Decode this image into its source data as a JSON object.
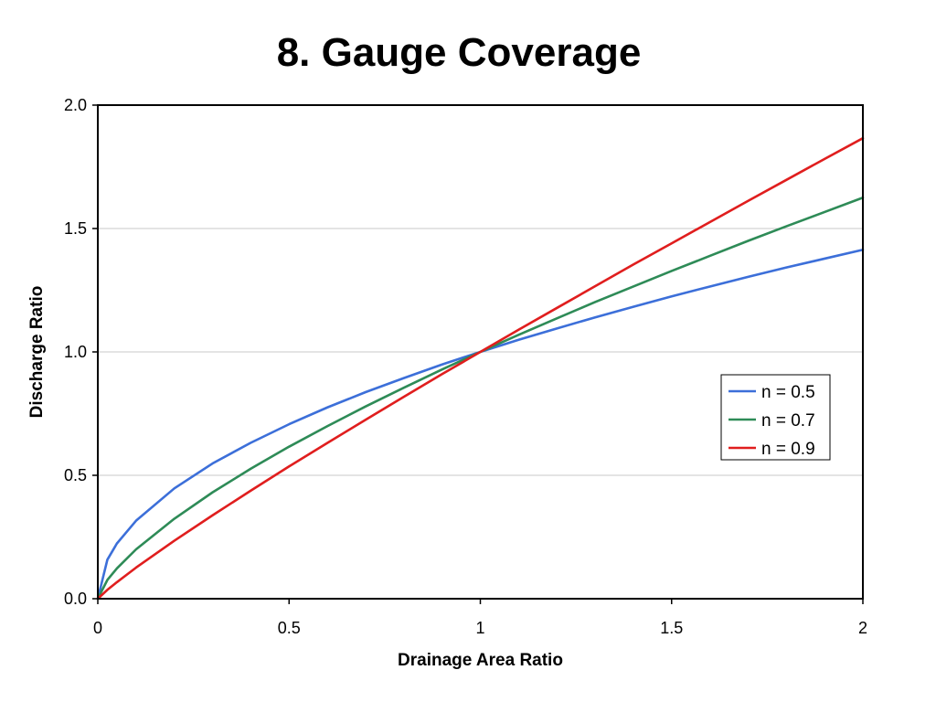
{
  "chart_data": {
    "type": "line",
    "title": "8. Gauge Coverage",
    "xlabel": "Drainage Area Ratio",
    "ylabel": "Discharge Ratio",
    "xlim": [
      0,
      2
    ],
    "ylim": [
      0,
      2
    ],
    "x_ticks": [
      "0",
      "0.5",
      "1",
      "1.5",
      "2"
    ],
    "y_ticks": [
      "0.0",
      "0.5",
      "1.0",
      "1.5",
      "2.0"
    ],
    "grid": "horizontal",
    "legend_position": "right",
    "x": [
      0,
      0.025,
      0.05,
      0.1,
      0.2,
      0.3,
      0.4,
      0.5,
      0.6,
      0.7,
      0.8,
      0.9,
      1.0,
      1.1,
      1.2,
      1.3,
      1.4,
      1.5,
      1.6,
      1.7,
      1.8,
      1.9,
      2.0
    ],
    "series": [
      {
        "name": "n = 0.5",
        "color": "#3c6fd9",
        "values": [
          0,
          0.158,
          0.224,
          0.316,
          0.447,
          0.548,
          0.632,
          0.707,
          0.775,
          0.837,
          0.894,
          0.949,
          1.0,
          1.049,
          1.095,
          1.14,
          1.183,
          1.225,
          1.265,
          1.304,
          1.342,
          1.378,
          1.414
        ]
      },
      {
        "name": "n = 0.7",
        "color": "#2e8b57",
        "values": [
          0,
          0.076,
          0.123,
          0.2,
          0.324,
          0.431,
          0.527,
          0.616,
          0.699,
          0.779,
          0.855,
          0.929,
          1.0,
          1.069,
          1.136,
          1.202,
          1.265,
          1.328,
          1.389,
          1.45,
          1.509,
          1.567,
          1.625
        ]
      },
      {
        "name": "n = 0.9",
        "color": "#e01e1e",
        "values": [
          0,
          0.036,
          0.067,
          0.126,
          0.235,
          0.338,
          0.438,
          0.536,
          0.631,
          0.725,
          0.818,
          0.91,
          1.0,
          1.09,
          1.178,
          1.266,
          1.354,
          1.44,
          1.526,
          1.612,
          1.697,
          1.782,
          1.866
        ]
      }
    ]
  }
}
